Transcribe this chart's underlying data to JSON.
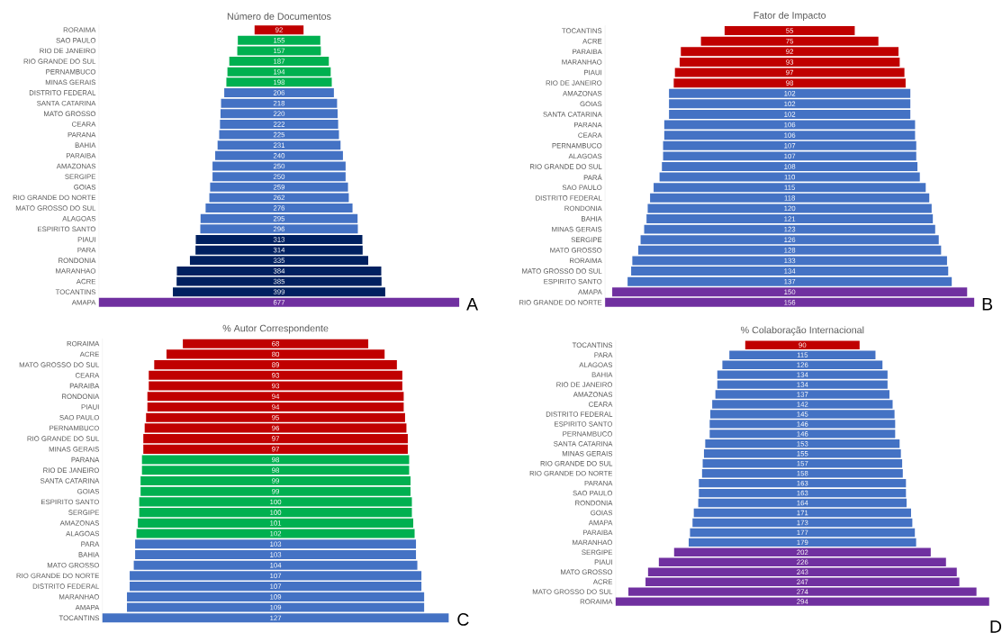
{
  "chart_data": [
    {
      "type": "other",
      "title": "Número de Documentos",
      "data_labels": true,
      "annotations": [
        "A"
      ],
      "categories": [
        "RORAIMA",
        "SAO PAULO",
        "RIO DE JANEIRO",
        "RIO GRANDE DO SUL",
        "PERNAMBUCO",
        "MINAS GERAIS",
        "DISTRITO FEDERAL",
        "SANTA CATARINA",
        "MATO GROSSO",
        "CEARA",
        "PARANA",
        "BAHIA",
        "PARAIBA",
        "AMAZONAS",
        "SERGIPE",
        "GOIAS",
        "RIO GRANDE DO NORTE",
        "MATO GROSSO DO SUL",
        "ALAGOAS",
        "ESPIRITO SANTO",
        "PIAUI",
        "PARA",
        "RONDONIA",
        "MARANHAO",
        "ACRE",
        "TOCANTINS",
        "AMAPA"
      ],
      "values": [
        92,
        155,
        157,
        187,
        194,
        198,
        206,
        218,
        220,
        222,
        225,
        231,
        240,
        250,
        250,
        259,
        262,
        276,
        295,
        296,
        313,
        314,
        335,
        384,
        385,
        399,
        677
      ],
      "colors": [
        "#c00000",
        "#00b050",
        "#00b050",
        "#00b050",
        "#00b050",
        "#00b050",
        "#4472c4",
        "#4472c4",
        "#4472c4",
        "#4472c4",
        "#4472c4",
        "#4472c4",
        "#4472c4",
        "#4472c4",
        "#4472c4",
        "#4472c4",
        "#4472c4",
        "#4472c4",
        "#4472c4",
        "#4472c4",
        "#002060",
        "#002060",
        "#002060",
        "#002060",
        "#002060",
        "#002060",
        "#7030a0"
      ]
    },
    {
      "type": "other",
      "title": "Fator de Impacto",
      "data_labels": true,
      "annotations": [
        "B"
      ],
      "categories": [
        "TOCANTINS",
        "ACRE",
        "PARAIBA",
        "MARANHAO",
        "PIAUI",
        "RIO DE JANEIRO",
        "AMAZONAS",
        "GOIAS",
        "SANTA CATARINA",
        "PARANA",
        "CEARA",
        "PERNAMBUCO",
        "ALAGOAS",
        "RIO GRANDE DO SUL",
        "PARÁ",
        "SAO PAULO",
        "DISTRITO FEDERAL",
        "RONDONIA",
        "BAHIA",
        "MINAS GERAIS",
        "SERGIPE",
        "MATO GROSSO",
        "RORAIMA",
        "MATO GROSSO DO SUL",
        "ESPIRITO SANTO",
        "AMAPA",
        "RIO GRANDE DO NORTE"
      ],
      "values": [
        55,
        75,
        92,
        93,
        97,
        98,
        102,
        102,
        102,
        106,
        106,
        107,
        107,
        108,
        110,
        115,
        118,
        120,
        121,
        123,
        126,
        128,
        133,
        134,
        137,
        150,
        156
      ],
      "colors": [
        "#c00000",
        "#c00000",
        "#c00000",
        "#c00000",
        "#c00000",
        "#c00000",
        "#4472c4",
        "#4472c4",
        "#4472c4",
        "#4472c4",
        "#4472c4",
        "#4472c4",
        "#4472c4",
        "#4472c4",
        "#4472c4",
        "#4472c4",
        "#4472c4",
        "#4472c4",
        "#4472c4",
        "#4472c4",
        "#4472c4",
        "#4472c4",
        "#4472c4",
        "#4472c4",
        "#4472c4",
        "#7030a0",
        "#7030a0"
      ]
    },
    {
      "type": "other",
      "title": "% Autor Correspondente",
      "data_labels": true,
      "annotations": [
        "C"
      ],
      "categories": [
        "RORAIMA",
        "ACRE",
        "MATO GROSSO DO SUL",
        "CEARA",
        "PARAIBA",
        "RONDONIA",
        "PIAUI",
        "SAO PAULO",
        "PERNAMBUCO",
        "RIO GRANDE DO SUL",
        "MINAS GERAIS",
        "PARANA",
        "RIO DE JANEIRO",
        "SANTA CATARINA",
        "GOIAS",
        "ESPIRITO SANTO",
        "SERGIPE",
        "AMAZONAS",
        "ALAGOAS",
        "PARA",
        "BAHIA",
        "MATO GROSSO",
        "RIO GRANDE DO NORTE",
        "DISTRITO FEDERAL",
        "MARANHAO",
        "AMAPA",
        "TOCANTINS"
      ],
      "values": [
        68,
        80,
        89,
        93,
        93,
        94,
        94,
        95,
        96,
        97,
        97,
        98,
        98,
        99,
        99,
        100,
        100,
        101,
        102,
        103,
        103,
        104,
        107,
        107,
        109,
        109,
        127
      ],
      "colors": [
        "#c00000",
        "#c00000",
        "#c00000",
        "#c00000",
        "#c00000",
        "#c00000",
        "#c00000",
        "#c00000",
        "#c00000",
        "#c00000",
        "#c00000",
        "#00b050",
        "#00b050",
        "#00b050",
        "#00b050",
        "#00b050",
        "#00b050",
        "#00b050",
        "#00b050",
        "#4472c4",
        "#4472c4",
        "#4472c4",
        "#4472c4",
        "#4472c4",
        "#4472c4",
        "#4472c4",
        "#4472c4"
      ]
    },
    {
      "type": "other",
      "title": "% Colaboração Internacional",
      "data_labels": true,
      "annotations": [
        "D"
      ],
      "categories": [
        "TOCANTINS",
        "PARA",
        "ALAGOAS",
        "BAHIA",
        "RIO DE JANEIRO",
        "AMAZONAS",
        "CEARA",
        "DISTRITO FEDERAL",
        "ESPIRITO SANTO",
        "PERNAMBUCO",
        "SANTA CATARINA",
        "MINAS GERAIS",
        "RIO GRANDE DO SUL",
        "RIO GRANDE DO NORTE",
        "PARANA",
        "SAO PAULO",
        "RONDONIA",
        "GOIAS",
        "AMAPA",
        "PARAIBA",
        "MARANHAO",
        "SERGIPE",
        "PIAUI",
        "MATO GROSSO",
        "ACRE",
        "MATO GROSSO DO SUL",
        "RORAIMA"
      ],
      "values": [
        90,
        115,
        126,
        134,
        134,
        137,
        142,
        145,
        146,
        146,
        153,
        155,
        157,
        158,
        163,
        163,
        164,
        171,
        173,
        177,
        179,
        202,
        226,
        243,
        247,
        274,
        294
      ],
      "colors": [
        "#c00000",
        "#4472c4",
        "#4472c4",
        "#4472c4",
        "#4472c4",
        "#4472c4",
        "#4472c4",
        "#4472c4",
        "#4472c4",
        "#4472c4",
        "#4472c4",
        "#4472c4",
        "#4472c4",
        "#4472c4",
        "#4472c4",
        "#4472c4",
        "#4472c4",
        "#4472c4",
        "#4472c4",
        "#4472c4",
        "#4472c4",
        "#7030a0",
        "#7030a0",
        "#7030a0",
        "#7030a0",
        "#7030a0",
        "#7030a0"
      ]
    }
  ]
}
